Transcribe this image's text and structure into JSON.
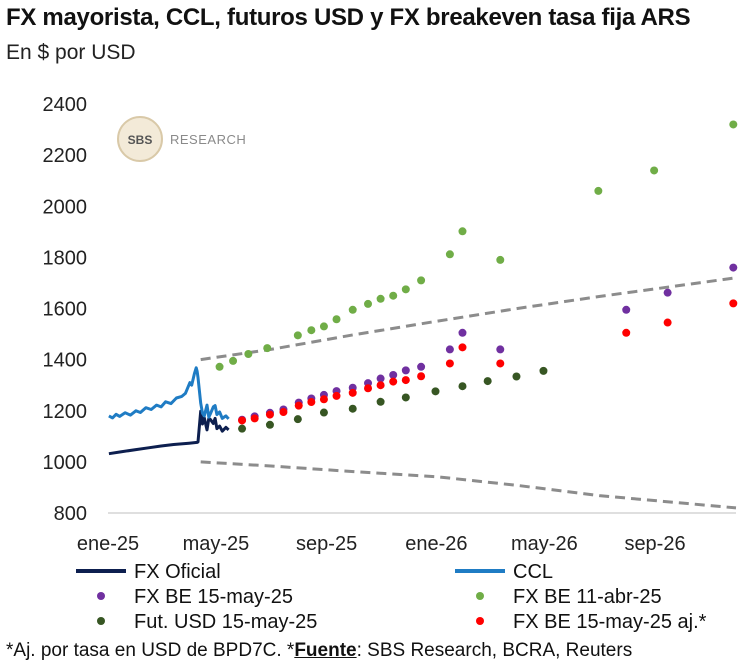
{
  "title": "FX mayorista, CCL, futuros USD y FX breakeven tasa fija ARS",
  "subtitle": "En $ por USD",
  "footnote": {
    "prefix": "*Aj. por tasa en USD de BPD7C. *",
    "source_label": "Fuente",
    "source_text": ": SBS Research, BCRA, Reuters"
  },
  "watermark": {
    "logo": "SBS",
    "text": "RESEARCH"
  },
  "colors": {
    "fx_oficial": "#0d1f4f",
    "ccl": "#1f7cc4",
    "fx_be_may": "#7030a0",
    "fx_be_abr": "#70ad47",
    "futuros": "#375623",
    "fx_be_aj": "#ff0000",
    "band": "#8c8c8c"
  },
  "chart_data": {
    "type": "line",
    "x_type": "date",
    "xlim": [
      "2025-01-01",
      "2026-11-30"
    ],
    "ylim": [
      800,
      2400
    ],
    "yticks": [
      800,
      1000,
      1200,
      1400,
      1600,
      1800,
      2000,
      2200,
      2400
    ],
    "xticks": [
      {
        "date": "2025-01-01",
        "label": "ene-25"
      },
      {
        "date": "2025-05-01",
        "label": "may-25"
      },
      {
        "date": "2025-09-01",
        "label": "sep-25"
      },
      {
        "date": "2026-01-01",
        "label": "ene-26"
      },
      {
        "date": "2026-05-01",
        "label": "may-26"
      },
      {
        "date": "2026-09-01",
        "label": "sep-26"
      }
    ],
    "series": [
      {
        "name": "FX Oficial",
        "kind": "line",
        "color": "#0d1f4f",
        "points": [
          [
            "2025-01-02",
            1032
          ],
          [
            "2025-01-15",
            1039
          ],
          [
            "2025-02-01",
            1048
          ],
          [
            "2025-02-15",
            1055
          ],
          [
            "2025-03-01",
            1062
          ],
          [
            "2025-03-15",
            1068
          ],
          [
            "2025-04-01",
            1073
          ],
          [
            "2025-04-10",
            1076
          ],
          [
            "2025-04-11",
            1078
          ],
          [
            "2025-04-14",
            1198
          ],
          [
            "2025-04-16",
            1148
          ],
          [
            "2025-04-18",
            1172
          ],
          [
            "2025-04-21",
            1125
          ],
          [
            "2025-04-23",
            1170
          ],
          [
            "2025-04-25",
            1165
          ],
          [
            "2025-04-28",
            1150
          ],
          [
            "2025-04-30",
            1170
          ],
          [
            "2025-05-02",
            1130
          ],
          [
            "2025-05-05",
            1140
          ],
          [
            "2025-05-08",
            1120
          ],
          [
            "2025-05-12",
            1135
          ],
          [
            "2025-05-15",
            1125
          ]
        ]
      },
      {
        "name": "CCL",
        "kind": "line",
        "color": "#1f7cc4",
        "points": [
          [
            "2025-01-02",
            1180
          ],
          [
            "2025-01-06",
            1172
          ],
          [
            "2025-01-10",
            1186
          ],
          [
            "2025-01-14",
            1178
          ],
          [
            "2025-01-20",
            1192
          ],
          [
            "2025-01-26",
            1183
          ],
          [
            "2025-02-01",
            1200
          ],
          [
            "2025-02-06",
            1193
          ],
          [
            "2025-02-12",
            1212
          ],
          [
            "2025-02-18",
            1205
          ],
          [
            "2025-02-24",
            1222
          ],
          [
            "2025-03-01",
            1215
          ],
          [
            "2025-03-06",
            1235
          ],
          [
            "2025-03-12",
            1228
          ],
          [
            "2025-03-18",
            1250
          ],
          [
            "2025-03-24",
            1256
          ],
          [
            "2025-03-28",
            1268
          ],
          [
            "2025-04-02",
            1310
          ],
          [
            "2025-04-04",
            1300
          ],
          [
            "2025-04-07",
            1345
          ],
          [
            "2025-04-09",
            1368
          ],
          [
            "2025-04-10",
            1355
          ],
          [
            "2025-04-11",
            1330
          ],
          [
            "2025-04-14",
            1230
          ],
          [
            "2025-04-16",
            1190
          ],
          [
            "2025-04-18",
            1180
          ],
          [
            "2025-04-21",
            1222
          ],
          [
            "2025-04-23",
            1175
          ],
          [
            "2025-04-25",
            1190
          ],
          [
            "2025-04-28",
            1215
          ],
          [
            "2025-04-30",
            1220
          ],
          [
            "2025-05-02",
            1185
          ],
          [
            "2025-05-05",
            1195
          ],
          [
            "2025-05-08",
            1170
          ],
          [
            "2025-05-12",
            1180
          ],
          [
            "2025-05-15",
            1168
          ]
        ]
      },
      {
        "name": "Banda superior",
        "kind": "dashed",
        "color": "#8c8c8c",
        "points": [
          [
            "2025-04-14",
            1400
          ],
          [
            "2025-07-01",
            1440
          ],
          [
            "2025-10-01",
            1497
          ],
          [
            "2026-01-01",
            1550
          ],
          [
            "2026-04-01",
            1600
          ],
          [
            "2026-07-01",
            1647
          ],
          [
            "2026-11-30",
            1720
          ]
        ]
      },
      {
        "name": "Banda inferior",
        "kind": "dashed",
        "color": "#8c8c8c",
        "points": [
          [
            "2025-04-14",
            1000
          ],
          [
            "2025-07-01",
            984
          ],
          [
            "2025-10-01",
            962
          ],
          [
            "2026-01-01",
            942
          ],
          [
            "2026-04-01",
            908
          ],
          [
            "2026-07-01",
            868
          ],
          [
            "2026-11-30",
            820
          ]
        ]
      },
      {
        "name": "FX BE 15-may-25",
        "kind": "scatter",
        "color": "#7030a0",
        "points": [
          [
            "2025-05-30",
            1165
          ],
          [
            "2025-06-13",
            1178
          ],
          [
            "2025-06-30",
            1192
          ],
          [
            "2025-07-15",
            1205
          ],
          [
            "2025-08-01",
            1232
          ],
          [
            "2025-08-15",
            1248
          ],
          [
            "2025-08-29",
            1262
          ],
          [
            "2025-09-12",
            1277
          ],
          [
            "2025-09-30",
            1290
          ],
          [
            "2025-10-17",
            1308
          ],
          [
            "2025-10-31",
            1326
          ],
          [
            "2025-11-14",
            1340
          ],
          [
            "2025-11-28",
            1358
          ],
          [
            "2025-12-15",
            1372
          ],
          [
            "2026-01-16",
            1440
          ],
          [
            "2026-01-30",
            1505
          ],
          [
            "2026-03-13",
            1440
          ],
          [
            "2026-07-31",
            1595
          ],
          [
            "2026-09-15",
            1662
          ],
          [
            "2026-11-27",
            1760
          ]
        ]
      },
      {
        "name": "FX BE 11-abr-25",
        "kind": "scatter",
        "color": "#70ad47",
        "points": [
          [
            "2025-05-05",
            1372
          ],
          [
            "2025-05-20",
            1395
          ],
          [
            "2025-06-06",
            1422
          ],
          [
            "2025-06-27",
            1445
          ],
          [
            "2025-07-31",
            1495
          ],
          [
            "2025-08-15",
            1515
          ],
          [
            "2025-08-29",
            1530
          ],
          [
            "2025-09-12",
            1558
          ],
          [
            "2025-09-30",
            1595
          ],
          [
            "2025-10-17",
            1618
          ],
          [
            "2025-10-31",
            1638
          ],
          [
            "2025-11-14",
            1650
          ],
          [
            "2025-11-28",
            1675
          ],
          [
            "2025-12-15",
            1710
          ],
          [
            "2026-01-16",
            1812
          ],
          [
            "2026-01-30",
            1902
          ],
          [
            "2026-03-13",
            1790
          ],
          [
            "2026-06-30",
            2060
          ],
          [
            "2026-08-31",
            2140
          ],
          [
            "2026-11-27",
            2320
          ]
        ]
      },
      {
        "name": "Fut. USD 15-may-25",
        "kind": "scatter",
        "color": "#375623",
        "points": [
          [
            "2025-05-30",
            1130
          ],
          [
            "2025-06-30",
            1145
          ],
          [
            "2025-07-31",
            1167
          ],
          [
            "2025-08-29",
            1193
          ],
          [
            "2025-09-30",
            1208
          ],
          [
            "2025-10-31",
            1235
          ],
          [
            "2025-11-28",
            1252
          ],
          [
            "2025-12-31",
            1276
          ],
          [
            "2026-01-30",
            1296
          ],
          [
            "2026-02-27",
            1316
          ],
          [
            "2026-03-31",
            1334
          ],
          [
            "2026-04-30",
            1356
          ]
        ]
      },
      {
        "name": "FX BE 15-may-25 aj.*",
        "kind": "scatter",
        "color": "#ff0000",
        "points": [
          [
            "2025-05-30",
            1162
          ],
          [
            "2025-06-13",
            1170
          ],
          [
            "2025-06-30",
            1185
          ],
          [
            "2025-07-15",
            1195
          ],
          [
            "2025-08-01",
            1220
          ],
          [
            "2025-08-15",
            1234
          ],
          [
            "2025-08-29",
            1245
          ],
          [
            "2025-09-12",
            1258
          ],
          [
            "2025-09-30",
            1270
          ],
          [
            "2025-10-17",
            1288
          ],
          [
            "2025-10-31",
            1300
          ],
          [
            "2025-11-14",
            1314
          ],
          [
            "2025-11-28",
            1320
          ],
          [
            "2025-12-15",
            1335
          ],
          [
            "2026-01-16",
            1385
          ],
          [
            "2026-01-30",
            1448
          ],
          [
            "2026-03-13",
            1385
          ],
          [
            "2026-07-31",
            1505
          ],
          [
            "2026-09-15",
            1545
          ],
          [
            "2026-11-27",
            1620
          ]
        ]
      }
    ],
    "legend": {
      "placement": "bottom",
      "entries": [
        {
          "label": "FX Oficial",
          "marker": "line",
          "color": "#0d1f4f"
        },
        {
          "label": "CCL",
          "marker": "line",
          "color": "#1f7cc4"
        },
        {
          "label": "FX BE 15-may-25",
          "marker": "dot",
          "color": "#7030a0"
        },
        {
          "label": "FX BE 11-abr-25",
          "marker": "dot",
          "color": "#70ad47"
        },
        {
          "label": "Fut. USD 15-may-25",
          "marker": "dot",
          "color": "#375623"
        },
        {
          "label": "FX BE 15-may-25 aj.*",
          "marker": "dot",
          "color": "#ff0000"
        }
      ]
    }
  }
}
